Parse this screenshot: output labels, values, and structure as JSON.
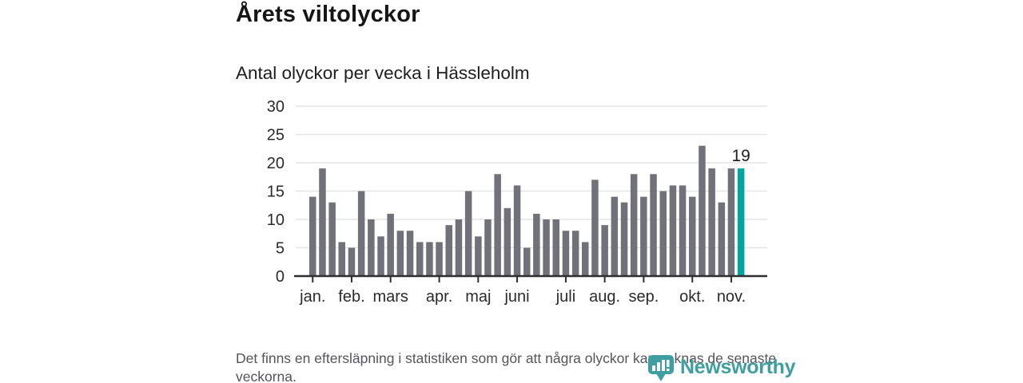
{
  "header": {
    "title": "Årets viltolyckor",
    "subtitle": "Antal olyckor per vecka i Hässleholm"
  },
  "chart_data": {
    "type": "bar",
    "title": "Årets viltolyckor",
    "subtitle": "Antal olyckor per vecka i Hässleholm",
    "x_unit": "vecka",
    "weeks_start": 1,
    "values": [
      14,
      19,
      13,
      6,
      5,
      15,
      10,
      7,
      11,
      8,
      8,
      6,
      6,
      6,
      9,
      10,
      15,
      7,
      10,
      18,
      12,
      16,
      5,
      11,
      10,
      10,
      8,
      8,
      6,
      17,
      9,
      14,
      13,
      18,
      14,
      18,
      15,
      16,
      16,
      14,
      23,
      19,
      13,
      19,
      19
    ],
    "highlight_index": 44,
    "highlight_value_label": "19",
    "ylim": [
      0,
      30
    ],
    "yticks": [
      0,
      5,
      10,
      15,
      20,
      25,
      30
    ],
    "grid": true,
    "legend": "none",
    "months": [
      {
        "label": "jan.",
        "week": 1
      },
      {
        "label": "feb.",
        "week": 5
      },
      {
        "label": "mars",
        "week": 9
      },
      {
        "label": "apr.",
        "week": 14
      },
      {
        "label": "maj",
        "week": 18
      },
      {
        "label": "juni",
        "week": 22
      },
      {
        "label": "juli",
        "week": 27
      },
      {
        "label": "aug.",
        "week": 31
      },
      {
        "label": "sep.",
        "week": 35
      },
      {
        "label": "okt.",
        "week": 40
      },
      {
        "label": "nov.",
        "week": 44
      }
    ],
    "colors": {
      "bar": "#71717a",
      "highlight": "#00a69e",
      "grid": "#e4e4e4",
      "axis": "#2f2f2f",
      "label": "#2b2b2b",
      "annotation": "#1e1e1e"
    }
  },
  "footer": {
    "note": "Det finns en eftersläpning i statistiken som gör att några olyckor kan saknas de senaste veckorna."
  },
  "branding": {
    "logo_text": "Newsworthy",
    "logo_color": "#3f9fa0"
  }
}
